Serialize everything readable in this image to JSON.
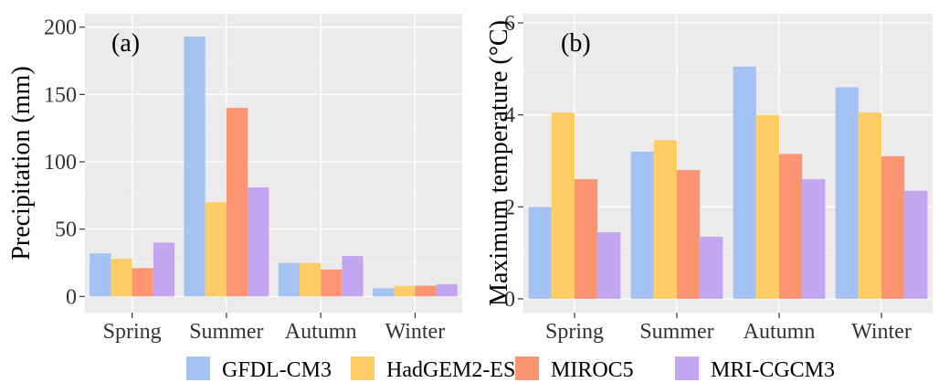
{
  "legend": {
    "entries": [
      "GFDL-CM3",
      "HadGEM2-ES",
      "MIROC5",
      "MRI-CGCM3"
    ],
    "colors": [
      "#a4c2f4",
      "#ffcc66",
      "#ff9472",
      "#c4a6f0"
    ],
    "position": "bottom"
  },
  "panel_background": "#ebebeb",
  "chart_data": [
    {
      "type": "bar",
      "panel_label": "(a)",
      "categories": [
        "Spring",
        "Summer",
        "Autumn",
        "Winter"
      ],
      "series": [
        {
          "name": "GFDL-CM3",
          "values": [
            32,
            193,
            25,
            6
          ]
        },
        {
          "name": "HadGEM2-ES",
          "values": [
            28,
            70,
            25,
            8
          ]
        },
        {
          "name": "MIROC5",
          "values": [
            21,
            140,
            20,
            8
          ]
        },
        {
          "name": "MRI-CGCM3",
          "values": [
            40,
            81,
            30,
            9
          ]
        }
      ],
      "xlabel": "",
      "ylabel": "Precipitation (mm)",
      "ylim": [
        -12,
        210
      ],
      "yticks": [
        0,
        50,
        100,
        150,
        200
      ],
      "grid": true
    },
    {
      "type": "bar",
      "panel_label": "(b)",
      "categories": [
        "Spring",
        "Summer",
        "Autumn",
        "Winter"
      ],
      "series": [
        {
          "name": "GFDL-CM3",
          "values": [
            2.0,
            3.2,
            5.05,
            4.6
          ]
        },
        {
          "name": "HadGEM2-ES",
          "values": [
            4.05,
            3.45,
            4.0,
            4.05
          ]
        },
        {
          "name": "MIROC5",
          "values": [
            2.6,
            2.8,
            3.15,
            3.1
          ]
        },
        {
          "name": "MRI-CGCM3",
          "values": [
            1.45,
            1.35,
            2.6,
            2.35
          ]
        }
      ],
      "xlabel": "",
      "ylabel": "Maximum temperature (°C)",
      "ylim": [
        -0.3,
        6.2
      ],
      "yticks": [
        0,
        2,
        4,
        6
      ],
      "grid": true
    }
  ]
}
